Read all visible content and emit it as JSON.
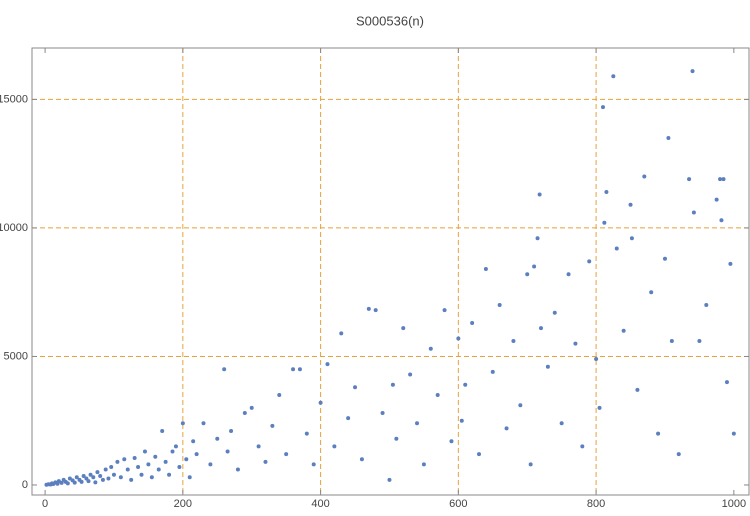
{
  "chart_data": {
    "type": "scatter",
    "title": "S000536(n)",
    "color": "#5b7fbf",
    "grid": true,
    "xlim": [
      -19,
      1022
    ],
    "ylim": [
      -390,
      17000
    ],
    "xticks": [
      0,
      200,
      400,
      600,
      800,
      1000
    ],
    "yticks": [
      0,
      5000,
      10000,
      15000
    ],
    "x": [
      2,
      5,
      8,
      10,
      12,
      15,
      18,
      20,
      24,
      27,
      30,
      33,
      36,
      40,
      43,
      46,
      50,
      53,
      56,
      60,
      63,
      66,
      70,
      73,
      76,
      80,
      84,
      88,
      92,
      96,
      100,
      105,
      110,
      115,
      120,
      125,
      130,
      135,
      140,
      145,
      150,
      155,
      160,
      165,
      170,
      175,
      180,
      185,
      190,
      195,
      200,
      205,
      210,
      215,
      220,
      230,
      240,
      250,
      260,
      265,
      270,
      280,
      290,
      300,
      310,
      320,
      330,
      340,
      350,
      360,
      370,
      380,
      390,
      400,
      410,
      420,
      430,
      440,
      450,
      460,
      470,
      480,
      490,
      500,
      505,
      510,
      520,
      530,
      540,
      550,
      560,
      570,
      580,
      590,
      600,
      605,
      610,
      620,
      630,
      640,
      650,
      660,
      670,
      680,
      690,
      700,
      705,
      710,
      715,
      718,
      720,
      730,
      740,
      750,
      760,
      770,
      780,
      790,
      800,
      805,
      810,
      812,
      815,
      825,
      830,
      840,
      850,
      852,
      860,
      870,
      880,
      890,
      900,
      905,
      910,
      920,
      935,
      940,
      942,
      950,
      960,
      975,
      980,
      982,
      985,
      990,
      995,
      1000
    ],
    "values": [
      10,
      30,
      20,
      60,
      40,
      100,
      50,
      150,
      80,
      200,
      120,
      60,
      250,
      180,
      90,
      300,
      200,
      120,
      350,
      250,
      150,
      400,
      300,
      100,
      500,
      350,
      200,
      600,
      250,
      700,
      400,
      900,
      300,
      1000,
      600,
      200,
      1050,
      700,
      400,
      1300,
      800,
      300,
      1100,
      600,
      2100,
      900,
      400,
      1300,
      1500,
      700,
      2400,
      1000,
      300,
      1700,
      1200,
      2400,
      800,
      1800,
      4500,
      1300,
      2100,
      600,
      2800,
      3000,
      1500,
      900,
      2300,
      3500,
      1200,
      4500,
      4500,
      2000,
      800,
      3200,
      4700,
      1500,
      5900,
      2600,
      3800,
      1000,
      6850,
      6800,
      2800,
      200,
      3900,
      1800,
      6100,
      4300,
      2400,
      800,
      5300,
      3500,
      6800,
      1700,
      5700,
      2500,
      3900,
      6300,
      1200,
      8400,
      4400,
      7000,
      2200,
      5600,
      3100,
      8200,
      800,
      8500,
      9600,
      11300,
      6100,
      4600,
      6700,
      2400,
      8200,
      5500,
      1500,
      8700,
      4900,
      3000,
      14700,
      10200,
      11400,
      15900,
      9200,
      6000,
      10900,
      9600,
      3700,
      12000,
      7500,
      2000,
      8800,
      13500,
      5600,
      1200,
      11900,
      16100,
      10600,
      5600,
      7000,
      11100,
      11900,
      10300,
      11900,
      4000,
      8600,
      2000
    ]
  }
}
